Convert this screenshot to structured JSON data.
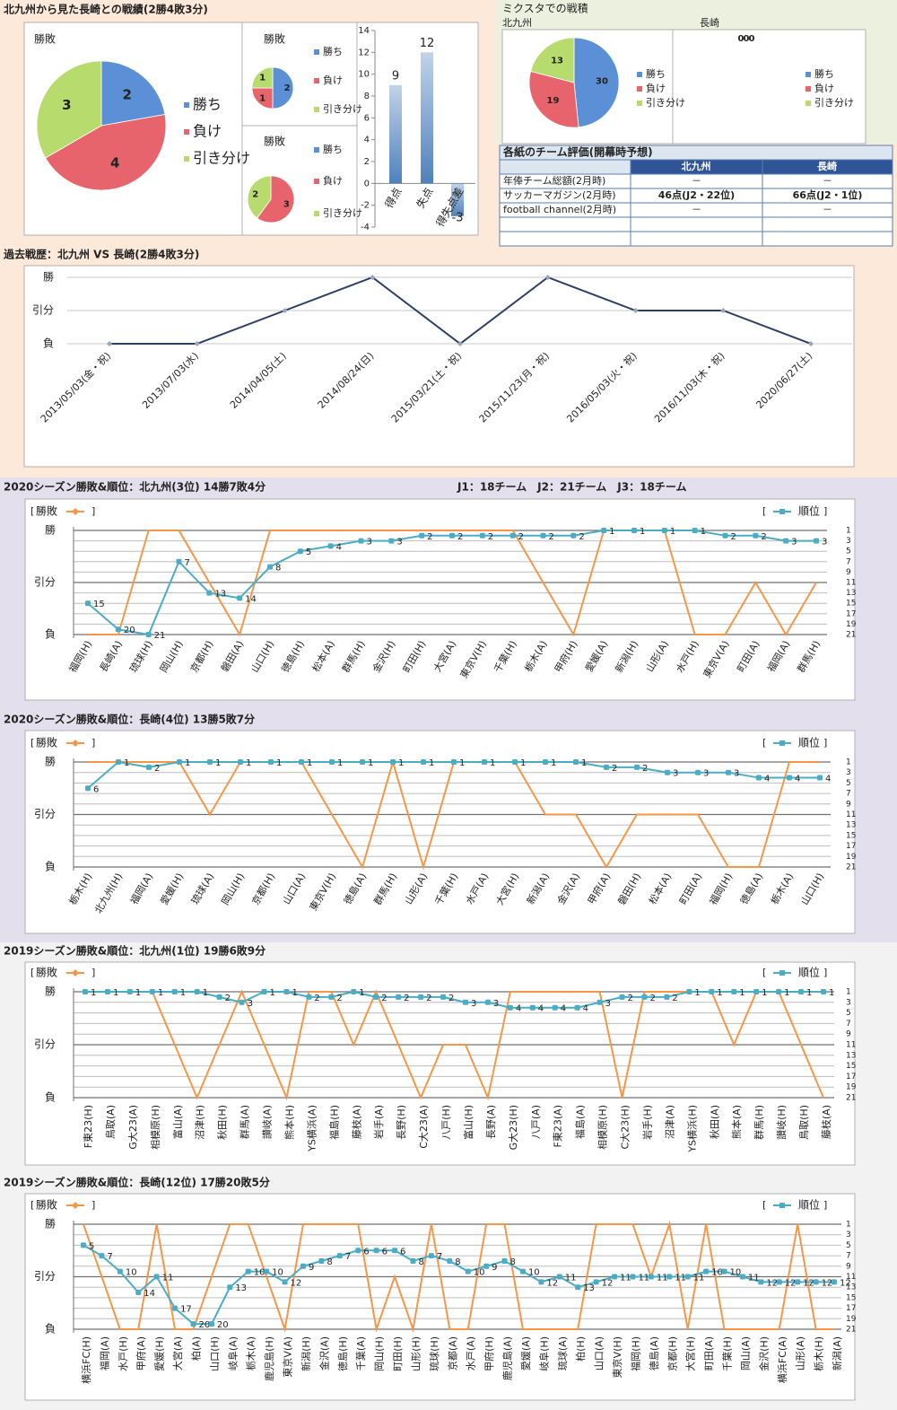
{
  "headings": {
    "h2h": "北九州から見た長崎との戦績(2勝4敗3分)",
    "mixta": "ミクスタでの戦積",
    "mixta_home": "北九州",
    "mixta_away": "長崎",
    "league_info": "J1：18チーム　J2：21チーム　J3：18チーム"
  },
  "table": {
    "title": "各紙のチーム評価(開幕時予想)",
    "columns": [
      "北九州",
      "長崎"
    ],
    "rows": [
      [
        "年俸チーム総額(2月時)",
        "－",
        "－"
      ],
      [
        "サッカーマガジン(2月時)",
        "46点(J2・22位)",
        "66点(J2・1位)"
      ],
      [
        "football channel(2月時)",
        "－",
        "－"
      ]
    ]
  },
  "chart_data": [
    {
      "type": "pie",
      "title": "勝敗",
      "categories": [
        "勝ち",
        "負け",
        "引き分け"
      ],
      "values": [
        2,
        4,
        3
      ],
      "colors": [
        "#5b8fd6",
        "#e8646c",
        "#b8db6e"
      ]
    },
    {
      "type": "pie",
      "title": "勝敗",
      "categories": [
        "勝ち",
        "負け",
        "引き分け"
      ],
      "values": [
        2,
        1,
        1
      ],
      "colors": [
        "#5b8fd6",
        "#e8646c",
        "#b8db6e"
      ]
    },
    {
      "type": "pie",
      "title": "勝敗",
      "categories": [
        "勝ち",
        "負け",
        "引き分け"
      ],
      "values": [
        0,
        3,
        2
      ],
      "colors": [
        "#5b8fd6",
        "#e8646c",
        "#b8db6e"
      ]
    },
    {
      "type": "bar",
      "categories": [
        "得点",
        "失点",
        "得失点差"
      ],
      "values": [
        9,
        12,
        -3
      ],
      "color": "#4f81bd",
      "ylim": [
        -4,
        14
      ],
      "yticks": [
        -4,
        -2,
        0,
        2,
        4,
        6,
        8,
        10,
        12,
        14
      ]
    },
    {
      "type": "pie",
      "categories": [
        "勝ち",
        "負け",
        "引き分け"
      ],
      "values": [
        30,
        19,
        13
      ],
      "colors": [
        "#5b8fd6",
        "#e8646c",
        "#b8db6e"
      ]
    },
    {
      "type": "pie",
      "categories": [
        "勝ち",
        "負け",
        "引き分け"
      ],
      "values": [
        0,
        0,
        0
      ],
      "colors": [
        "#5b8fd6",
        "#e8646c",
        "#b8db6e"
      ]
    },
    {
      "type": "line",
      "title": "過去戦歴：北九州 VS 長崎(2勝4敗3分)",
      "categories": [
        "2013/05/03(金・祝)",
        "2013/07/03(水)",
        "2014/04/05(土)",
        "2014/08/24(日)",
        "2015/03/21(土・祝)",
        "2015/11/23(月・祝)",
        "2016/05/03(火・祝)",
        "2016/11/03(木・祝)",
        "2020/06/27(土)"
      ],
      "values": [
        0,
        0,
        1,
        2,
        0,
        2,
        1,
        1,
        0
      ],
      "color": "#2b3f66",
      "ylim": [
        0,
        2
      ],
      "yticks": [
        {
          "value": 0,
          "label": "負"
        },
        {
          "value": 1,
          "label": "引分"
        },
        {
          "value": 2,
          "label": "勝"
        }
      ],
      "grid": true
    },
    {
      "type": "combo",
      "title": "2020シーズン勝敗&順位：北九州(3位) 14勝7敗4分",
      "categories": [
        "福岡(H)",
        "長崎(A)",
        "琉球(H)",
        "岡山(H)",
        "京都(H)",
        "磐田(A)",
        "山口(H)",
        "徳島(H)",
        "松本(A)",
        "群馬(H)",
        "金沢(H)",
        "町田(H)",
        "大宮(A)",
        "東京V(H)",
        "千葉(H)",
        "栃木(A)",
        "甲府(H)",
        "愛媛(A)",
        "新潟(H)",
        "山形(A)",
        "水戸(H)",
        "東京V(A)",
        "町田(A)",
        "福岡(A)",
        "群馬(H)"
      ],
      "series": [
        {
          "name": "勝敗",
          "color": "#f79646",
          "values": [
            0,
            0,
            2,
            2,
            1,
            0,
            2,
            2,
            2,
            2,
            2,
            2,
            2,
            2,
            2,
            1,
            0,
            2,
            2,
            2,
            0,
            0,
            1,
            0,
            1
          ]
        },
        {
          "name": "順位",
          "color": "#4bacc6",
          "axis": "y2",
          "values": [
            15,
            20,
            21,
            7,
            13,
            14,
            8,
            5,
            4,
            3,
            3,
            2,
            2,
            2,
            2,
            2,
            2,
            1,
            1,
            1,
            1,
            2,
            2,
            3,
            3
          ]
        }
      ],
      "ylim": [
        0,
        2
      ],
      "yticks": [
        {
          "value": 0,
          "label": "負"
        },
        {
          "value": 1,
          "label": "引分"
        },
        {
          "value": 2,
          "label": "勝"
        }
      ],
      "y2lim": [
        21,
        1
      ],
      "y2ticks": [
        1,
        3,
        5,
        7,
        9,
        11,
        13,
        15,
        17,
        19,
        21
      ],
      "grid": true
    },
    {
      "type": "combo",
      "title": "2020シーズン勝敗&順位：長崎(4位) 13勝5敗7分",
      "categories": [
        "栃木(H)",
        "北九州(H)",
        "福岡(A)",
        "愛媛(H)",
        "琉球(A)",
        "岡山(H)",
        "京都(H)",
        "山口(A)",
        "東京V(H)",
        "徳島(A)",
        "群馬(H)",
        "山形(A)",
        "千葉(H)",
        "水戸(A)",
        "大宮(H)",
        "新潟(A)",
        "金沢(A)",
        "甲府(A)",
        "磐田(H)",
        "松本(A)",
        "町田(A)",
        "福岡(H)",
        "徳島(A)",
        "栃木(A)",
        "山口(H)"
      ],
      "series": [
        {
          "name": "勝敗",
          "color": "#f79646",
          "values": [
            2,
            2,
            2,
            2,
            1,
            2,
            2,
            2,
            1,
            0,
            2,
            0,
            2,
            2,
            2,
            1,
            1,
            0,
            1,
            1,
            1,
            0,
            0,
            2,
            2
          ]
        },
        {
          "name": "順位",
          "color": "#4bacc6",
          "axis": "y2",
          "values": [
            6,
            1,
            2,
            1,
            1,
            1,
            1,
            1,
            1,
            1,
            1,
            1,
            1,
            1,
            1,
            1,
            1,
            2,
            2,
            3,
            3,
            3,
            4,
            4,
            4
          ]
        }
      ],
      "ylim": [
        0,
        2
      ],
      "yticks": [
        {
          "value": 0,
          "label": "負"
        },
        {
          "value": 1,
          "label": "引分"
        },
        {
          "value": 2,
          "label": "勝"
        }
      ],
      "y2lim": [
        21,
        1
      ],
      "y2ticks": [
        1,
        3,
        5,
        7,
        9,
        11,
        13,
        15,
        17,
        19,
        21
      ],
      "grid": true
    },
    {
      "type": "combo",
      "title": "2019シーズン勝敗&順位：北九州(1位) 19勝6敗9分",
      "categories": [
        "F東23(H)",
        "鳥取(A)",
        "G大23(A)",
        "相模原(H)",
        "富山(A)",
        "沼津(H)",
        "秋田(H)",
        "群馬(A)",
        "讃岐(A)",
        "熊本(H)",
        "YS横浜(A)",
        "福島(H)",
        "藤枝(A)",
        "岩手(A)",
        "長野(H)",
        "C大23(A)",
        "八戸(H)",
        "富山(H)",
        "長野(A)",
        "G大23(H)",
        "八戸(A)",
        "F東23(A)",
        "福島(A)",
        "相模原(H)",
        "C大23(H)",
        "岩手(H)",
        "沼津(A)",
        "YS横浜(H)",
        "秋田(A)",
        "熊本(A)",
        "群馬(H)",
        "讃岐(H)",
        "鳥取(H)",
        "藤枝(A)"
      ],
      "series": [
        {
          "name": "勝敗",
          "color": "#f79646",
          "values": [
            2,
            2,
            2,
            2,
            1,
            0,
            1,
            2,
            1,
            0,
            2,
            2,
            1,
            2,
            1,
            0,
            1,
            1,
            0,
            2,
            2,
            2,
            2,
            2,
            0,
            2,
            2,
            2,
            2,
            1,
            2,
            2,
            1,
            0
          ]
        },
        {
          "name": "順位",
          "color": "#4bacc6",
          "axis": "y2",
          "values": [
            1,
            1,
            1,
            1,
            1,
            1,
            2,
            3,
            1,
            1,
            2,
            2,
            1,
            2,
            2,
            2,
            2,
            3,
            3,
            4,
            4,
            4,
            4,
            3,
            2,
            2,
            2,
            1,
            1,
            1,
            1,
            1,
            1,
            1
          ]
        }
      ],
      "ylim": [
        0,
        2
      ],
      "yticks": [
        {
          "value": 0,
          "label": "負"
        },
        {
          "value": 1,
          "label": "引分"
        },
        {
          "value": 2,
          "label": "勝"
        }
      ],
      "y2lim": [
        21,
        1
      ],
      "y2ticks": [
        1,
        3,
        5,
        7,
        9,
        11,
        13,
        15,
        17,
        19,
        21
      ],
      "grid": true
    },
    {
      "type": "combo",
      "title": "2019シーズン勝敗&順位：長崎(12位) 17勝20敗5分",
      "categories": [
        "横浜FC(H)",
        "福岡(A)",
        "水戸(H)",
        "甲府(A)",
        "愛媛(H)",
        "大宮(A)",
        "柏(A)",
        "山口(H)",
        "岐阜(A)",
        "栃木(A)",
        "鹿児島(H)",
        "東京V(A)",
        "新潟(H)",
        "金沢(A)",
        "徳島(H)",
        "千葉(A)",
        "岡山(H)",
        "町田(H)",
        "山形(H)",
        "琉球(H)",
        "京都(A)",
        "水戸(A)",
        "甲府(H)",
        "鹿児島(A)",
        "愛媛(A)",
        "岐阜(H)",
        "琉球(A)",
        "柏(H)",
        "山口(A)",
        "東京V(H)",
        "福岡(H)",
        "徳島(A)",
        "京都(H)",
        "大宮(H)",
        "町田(A)",
        "千葉(H)",
        "岡山(A)",
        "金沢(H)",
        "横浜FC(A)",
        "山形(A)",
        "栃木(H)",
        "新潟(A)"
      ],
      "series": [
        {
          "name": "勝敗",
          "color": "#f79646",
          "values": [
            2,
            1,
            0,
            0,
            2,
            0,
            0,
            1,
            2,
            2,
            1,
            0,
            2,
            2,
            2,
            2,
            0,
            1,
            0,
            2,
            0,
            0,
            2,
            2,
            0,
            0,
            0,
            0,
            2,
            2,
            2,
            1,
            2,
            0,
            2,
            0,
            0,
            0,
            0,
            2,
            0,
            0
          ]
        },
        {
          "name": "順位",
          "color": "#4bacc6",
          "axis": "y2",
          "values": [
            5,
            7,
            10,
            14,
            11,
            17,
            20,
            20,
            13,
            10,
            10,
            12,
            9,
            8,
            7,
            6,
            6,
            6,
            8,
            7,
            8,
            10,
            9,
            8,
            10,
            12,
            11,
            13,
            12,
            11,
            11,
            11,
            11,
            11,
            10,
            10,
            11,
            12,
            12,
            12,
            12,
            12
          ]
        }
      ],
      "ylim": [
        0,
        2
      ],
      "yticks": [
        {
          "value": 0,
          "label": "負"
        },
        {
          "value": 1,
          "label": "引分"
        },
        {
          "value": 2,
          "label": "勝"
        }
      ],
      "y2lim": [
        21,
        1
      ],
      "y2ticks": [
        1,
        3,
        5,
        7,
        9,
        11,
        13,
        15,
        17,
        19,
        21
      ],
      "grid": true
    }
  ]
}
